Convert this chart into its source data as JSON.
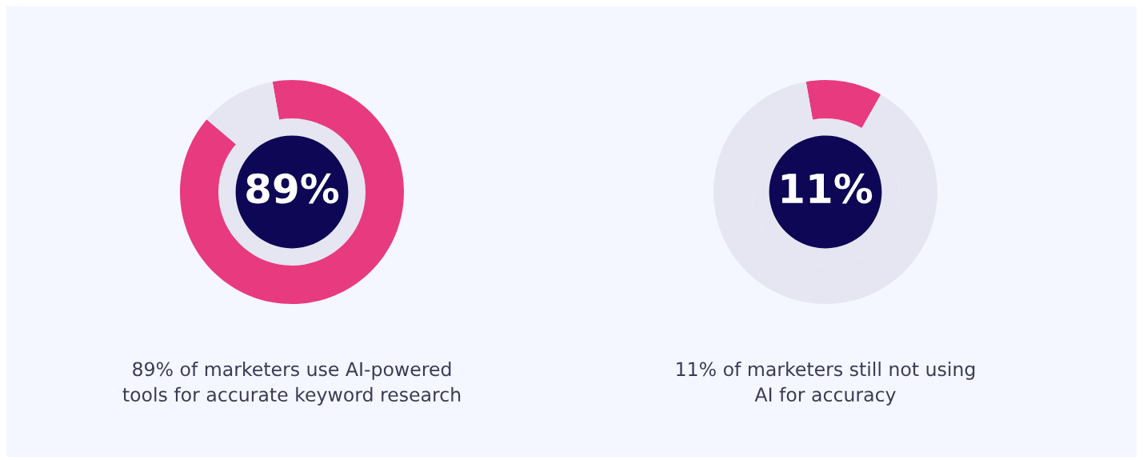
{
  "chart_data": [
    {
      "type": "donut",
      "categories": [
        null,
        null
      ],
      "values": [
        89,
        11
      ],
      "colors": [
        "#e83a7f",
        "#e6e6f3"
      ],
      "value_labels": [
        "89%",
        null
      ],
      "annotations": [
        "89% of marketers use AI-powered\ntools for accurate keyword research"
      ]
    },
    {
      "type": "donut",
      "categories": [
        null,
        null
      ],
      "values": [
        11,
        89
      ],
      "colors": [
        "#e83a7f",
        "#e6e6f3"
      ],
      "value_labels": [
        "11%",
        null
      ],
      "annotations": [
        "11% of marketers still not using\nAI for accuracy"
      ]
    }
  ]
}
